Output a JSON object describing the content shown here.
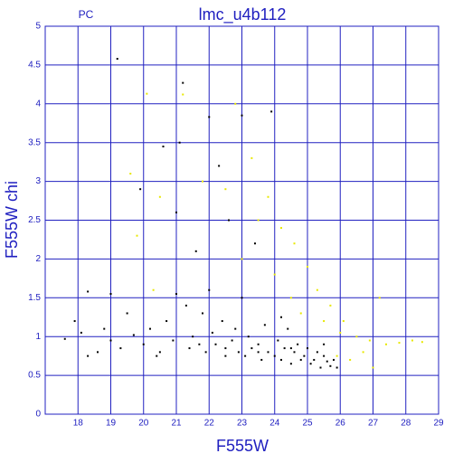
{
  "chart_data": {
    "type": "scatter",
    "title": "lmc_u4b112",
    "subtitle": "PC",
    "x_label": "F555W",
    "y_label": "F555W  chi",
    "xlim": [
      17,
      29
    ],
    "xticks": [
      18,
      19,
      20,
      21,
      22,
      23,
      24,
      25,
      26,
      27,
      28,
      29
    ],
    "ylim": [
      0,
      5
    ],
    "yticks": [
      0,
      0.5,
      1,
      1.5,
      2,
      2.5,
      3,
      3.5,
      4,
      4.5,
      5
    ],
    "grid": true,
    "grid_color": "#2020c0",
    "text_color": "#2020c0",
    "series": [
      {
        "color": "#000000",
        "x": [
          17.6,
          17.9,
          18.1,
          18.3,
          18.6,
          18.8,
          19.0,
          19.2,
          19.3,
          19.5,
          19.7,
          19.9,
          20.0,
          20.2,
          20.4,
          20.6,
          20.7,
          20.9,
          21.0,
          21.1,
          21.2,
          21.3,
          21.4,
          21.5,
          21.6,
          21.7,
          21.8,
          21.9,
          22.0,
          22.1,
          22.2,
          22.3,
          22.4,
          22.5,
          22.6,
          22.7,
          22.8,
          22.9,
          23.0,
          23.1,
          23.2,
          23.3,
          23.4,
          23.5,
          23.6,
          23.7,
          23.8,
          23.9,
          24.0,
          24.1,
          24.2,
          24.3,
          24.4,
          24.5,
          24.6,
          24.7,
          24.8,
          24.9,
          25.0,
          25.1,
          25.2,
          25.3,
          25.4,
          25.5,
          25.6,
          25.7,
          25.8,
          25.9,
          22.5,
          23.5,
          24.5,
          21.0,
          20.5,
          19.0,
          18.3,
          22.0,
          23.0,
          24.2,
          25.5
        ],
        "values": [
          0.97,
          1.2,
          1.05,
          0.75,
          0.8,
          1.1,
          0.95,
          4.58,
          0.85,
          1.3,
          1.02,
          2.9,
          0.9,
          1.1,
          0.75,
          3.45,
          1.2,
          0.95,
          2.6,
          3.5,
          4.27,
          1.4,
          0.85,
          1.0,
          2.1,
          0.9,
          1.3,
          0.8,
          3.83,
          1.05,
          0.9,
          3.2,
          1.2,
          0.85,
          2.5,
          0.95,
          1.1,
          0.8,
          3.85,
          0.75,
          1.0,
          0.85,
          2.2,
          0.9,
          0.7,
          1.15,
          0.8,
          3.9,
          0.75,
          0.95,
          0.7,
          0.85,
          1.1,
          0.65,
          0.8,
          0.9,
          0.7,
          0.75,
          0.85,
          0.65,
          0.7,
          0.8,
          0.6,
          0.75,
          0.68,
          0.62,
          0.7,
          0.6,
          0.75,
          0.8,
          0.85,
          1.55,
          0.8,
          1.55,
          1.58,
          1.6,
          1.5,
          1.25,
          0.9
        ]
      },
      {
        "color": "#e8e800",
        "x": [
          20.1,
          21.2,
          19.6,
          20.5,
          21.8,
          22.5,
          23.3,
          23.8,
          24.2,
          24.6,
          25.0,
          25.3,
          25.7,
          26.1,
          26.5,
          26.9,
          27.4,
          27.8,
          28.2,
          28.5,
          27.2,
          26.3,
          25.9,
          24.0,
          23.5,
          22.8,
          24.5,
          25.5,
          26.0,
          27.0,
          19.8,
          20.3,
          23.0,
          24.8,
          26.7
        ],
        "values": [
          4.13,
          4.12,
          3.1,
          2.8,
          3.0,
          2.9,
          3.3,
          2.8,
          2.4,
          2.2,
          1.9,
          1.6,
          1.4,
          1.2,
          1.0,
          0.95,
          0.9,
          0.92,
          0.95,
          0.93,
          1.5,
          0.7,
          0.75,
          1.8,
          2.5,
          4.0,
          1.5,
          1.2,
          1.05,
          0.6,
          2.3,
          1.6,
          2.0,
          1.3,
          0.8
        ]
      }
    ]
  }
}
